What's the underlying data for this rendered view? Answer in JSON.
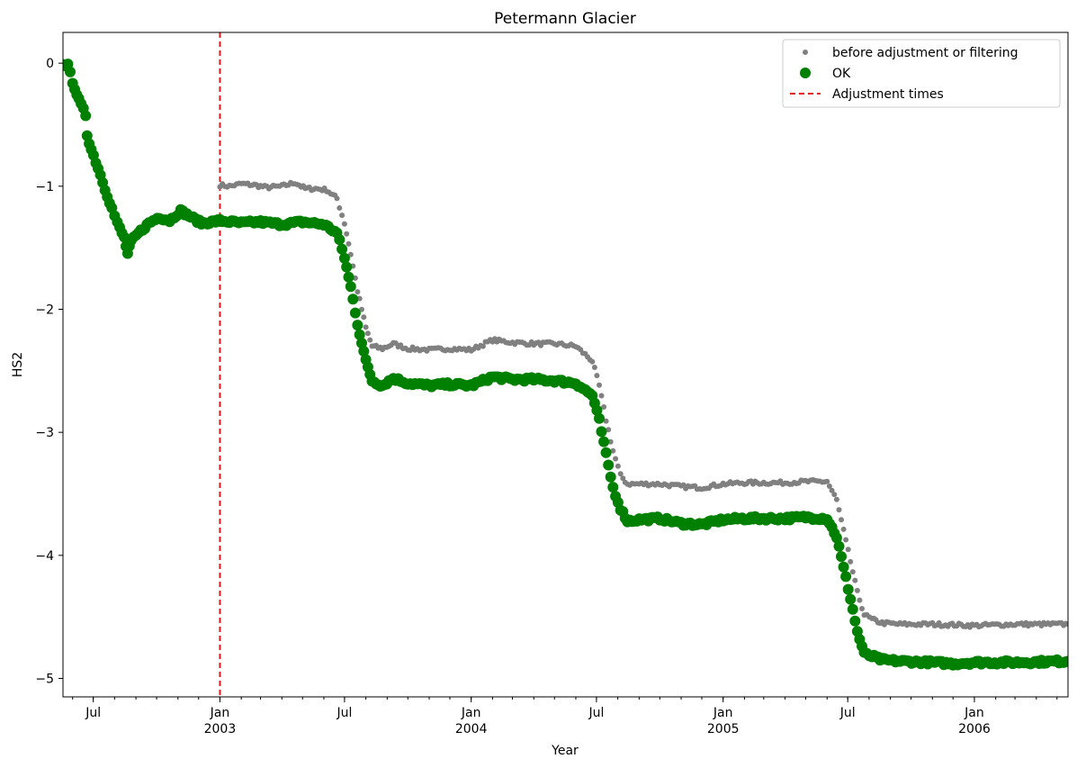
{
  "chart_data": {
    "type": "scatter",
    "title": "Petermann Glacier",
    "xlabel": "Year",
    "ylabel": "HS2",
    "xlim": [
      "2002-05-18",
      "2006-05-17"
    ],
    "ylim": [
      -5.15,
      0.25
    ],
    "yticks": [
      0,
      -1,
      -2,
      -3,
      -4,
      -5
    ],
    "ytick_labels": [
      "0",
      "−1",
      "−2",
      "−3",
      "−4",
      "−5"
    ],
    "xticks_major": [
      {
        "date": "2002-07-01",
        "label": "Jul",
        "sublabel": ""
      },
      {
        "date": "2003-01-01",
        "label": "Jan",
        "sublabel": "2003"
      },
      {
        "date": "2003-07-01",
        "label": "Jul",
        "sublabel": ""
      },
      {
        "date": "2004-01-01",
        "label": "Jan",
        "sublabel": "2004"
      },
      {
        "date": "2004-07-01",
        "label": "Jul",
        "sublabel": ""
      },
      {
        "date": "2005-01-01",
        "label": "Jan",
        "sublabel": "2005"
      },
      {
        "date": "2005-07-01",
        "label": "Jul",
        "sublabel": ""
      },
      {
        "date": "2006-01-01",
        "label": "Jan",
        "sublabel": "2006"
      }
    ],
    "grid": false,
    "legend_position": "top-right",
    "adjustment_times": [
      "2003-01-01"
    ],
    "series": [
      {
        "name": "before adjustment or filtering",
        "color": "#808080",
        "marker": "small-dot",
        "points": [
          [
            "2003-01-01",
            -0.99
          ],
          [
            "2003-01-15",
            -1.0
          ],
          [
            "2003-02-01",
            -0.98
          ],
          [
            "2003-02-20",
            -0.99
          ],
          [
            "2003-03-10",
            -1.01
          ],
          [
            "2003-04-01",
            -1.0
          ],
          [
            "2003-04-20",
            -0.97
          ],
          [
            "2003-05-05",
            -1.02
          ],
          [
            "2003-05-20",
            -1.02
          ],
          [
            "2003-06-05",
            -1.03
          ],
          [
            "2003-06-20",
            -1.1
          ],
          [
            "2003-07-01",
            -1.3
          ],
          [
            "2003-07-10",
            -1.55
          ],
          [
            "2003-07-20",
            -1.85
          ],
          [
            "2003-08-01",
            -2.15
          ],
          [
            "2003-08-10",
            -2.3
          ],
          [
            "2003-08-25",
            -2.32
          ],
          [
            "2003-09-10",
            -2.28
          ],
          [
            "2003-10-01",
            -2.32
          ],
          [
            "2003-11-01",
            -2.33
          ],
          [
            "2003-12-01",
            -2.32
          ],
          [
            "2004-01-01",
            -2.33
          ],
          [
            "2004-02-01",
            -2.25
          ],
          [
            "2004-03-01",
            -2.27
          ],
          [
            "2004-04-01",
            -2.28
          ],
          [
            "2004-05-01",
            -2.28
          ],
          [
            "2004-06-01",
            -2.3
          ],
          [
            "2004-06-25",
            -2.42
          ],
          [
            "2004-07-05",
            -2.62
          ],
          [
            "2004-07-15",
            -2.9
          ],
          [
            "2004-07-25",
            -3.15
          ],
          [
            "2004-08-05",
            -3.35
          ],
          [
            "2004-08-15",
            -3.42
          ],
          [
            "2004-09-01",
            -3.42
          ],
          [
            "2004-10-01",
            -3.42
          ],
          [
            "2004-11-01",
            -3.44
          ],
          [
            "2004-12-01",
            -3.45
          ],
          [
            "2005-01-01",
            -3.42
          ],
          [
            "2005-02-01",
            -3.41
          ],
          [
            "2005-03-01",
            -3.41
          ],
          [
            "2005-04-01",
            -3.41
          ],
          [
            "2005-05-01",
            -3.4
          ],
          [
            "2005-06-01",
            -3.4
          ],
          [
            "2005-06-15",
            -3.55
          ],
          [
            "2005-06-25",
            -3.8
          ],
          [
            "2005-07-05",
            -4.05
          ],
          [
            "2005-07-15",
            -4.3
          ],
          [
            "2005-07-25",
            -4.48
          ],
          [
            "2005-08-05",
            -4.52
          ],
          [
            "2005-08-20",
            -4.55
          ],
          [
            "2005-09-15",
            -4.56
          ],
          [
            "2005-11-01",
            -4.56
          ],
          [
            "2006-01-01",
            -4.57
          ],
          [
            "2006-03-01",
            -4.56
          ],
          [
            "2006-05-17",
            -4.56
          ]
        ]
      },
      {
        "name": "OK",
        "color": "#008000",
        "marker": "large-dot",
        "points": [
          [
            "2002-05-18",
            0.0
          ],
          [
            "2002-05-25",
            -0.02
          ],
          [
            "2002-06-01",
            -0.15
          ],
          [
            "2002-06-10",
            -0.3
          ],
          [
            "2002-06-20",
            -0.42
          ],
          [
            "2002-06-22",
            -0.58
          ],
          [
            "2002-06-28",
            -0.7
          ],
          [
            "2002-07-08",
            -0.85
          ],
          [
            "2002-07-18",
            -1.02
          ],
          [
            "2002-07-28",
            -1.18
          ],
          [
            "2002-08-05",
            -1.3
          ],
          [
            "2002-08-15",
            -1.42
          ],
          [
            "2002-08-20",
            -1.55
          ],
          [
            "2002-08-25",
            -1.45
          ],
          [
            "2002-09-05",
            -1.38
          ],
          [
            "2002-09-20",
            -1.3
          ],
          [
            "2002-10-05",
            -1.25
          ],
          [
            "2002-10-20",
            -1.28
          ],
          [
            "2002-11-05",
            -1.2
          ],
          [
            "2002-11-20",
            -1.25
          ],
          [
            "2002-12-05",
            -1.3
          ],
          [
            "2002-12-20",
            -1.29
          ],
          [
            "2003-01-01",
            -1.28
          ],
          [
            "2003-02-01",
            -1.3
          ],
          [
            "2003-03-01",
            -1.29
          ],
          [
            "2003-04-01",
            -1.31
          ],
          [
            "2003-05-01",
            -1.29
          ],
          [
            "2003-06-01",
            -1.31
          ],
          [
            "2003-06-20",
            -1.38
          ],
          [
            "2003-07-01",
            -1.58
          ],
          [
            "2003-07-10",
            -1.82
          ],
          [
            "2003-07-20",
            -2.12
          ],
          [
            "2003-08-01",
            -2.42
          ],
          [
            "2003-08-10",
            -2.58
          ],
          [
            "2003-08-25",
            -2.62
          ],
          [
            "2003-09-10",
            -2.56
          ],
          [
            "2003-10-01",
            -2.6
          ],
          [
            "2003-11-01",
            -2.62
          ],
          [
            "2003-12-01",
            -2.61
          ],
          [
            "2004-01-01",
            -2.62
          ],
          [
            "2004-02-01",
            -2.55
          ],
          [
            "2004-03-01",
            -2.57
          ],
          [
            "2004-04-01",
            -2.57
          ],
          [
            "2004-05-01",
            -2.58
          ],
          [
            "2004-06-01",
            -2.6
          ],
          [
            "2004-06-25",
            -2.7
          ],
          [
            "2004-07-05",
            -2.9
          ],
          [
            "2004-07-15",
            -3.18
          ],
          [
            "2004-07-25",
            -3.45
          ],
          [
            "2004-08-05",
            -3.62
          ],
          [
            "2004-08-15",
            -3.72
          ],
          [
            "2004-09-01",
            -3.71
          ],
          [
            "2004-10-01",
            -3.7
          ],
          [
            "2004-11-01",
            -3.74
          ],
          [
            "2004-12-01",
            -3.75
          ],
          [
            "2005-01-01",
            -3.71
          ],
          [
            "2005-02-01",
            -3.7
          ],
          [
            "2005-03-01",
            -3.7
          ],
          [
            "2005-04-01",
            -3.7
          ],
          [
            "2005-05-01",
            -3.69
          ],
          [
            "2005-06-01",
            -3.7
          ],
          [
            "2005-06-15",
            -3.85
          ],
          [
            "2005-06-25",
            -4.1
          ],
          [
            "2005-07-05",
            -4.35
          ],
          [
            "2005-07-15",
            -4.62
          ],
          [
            "2005-07-25",
            -4.8
          ],
          [
            "2005-08-05",
            -4.82
          ],
          [
            "2005-08-20",
            -4.85
          ],
          [
            "2005-09-15",
            -4.86
          ],
          [
            "2005-11-01",
            -4.87
          ],
          [
            "2005-12-01",
            -4.88
          ],
          [
            "2006-01-01",
            -4.87
          ],
          [
            "2006-03-01",
            -4.87
          ],
          [
            "2006-05-17",
            -4.86
          ]
        ]
      },
      {
        "name": "Adjustment times",
        "color": "#e41a1c",
        "marker": "dashed-line"
      }
    ]
  }
}
